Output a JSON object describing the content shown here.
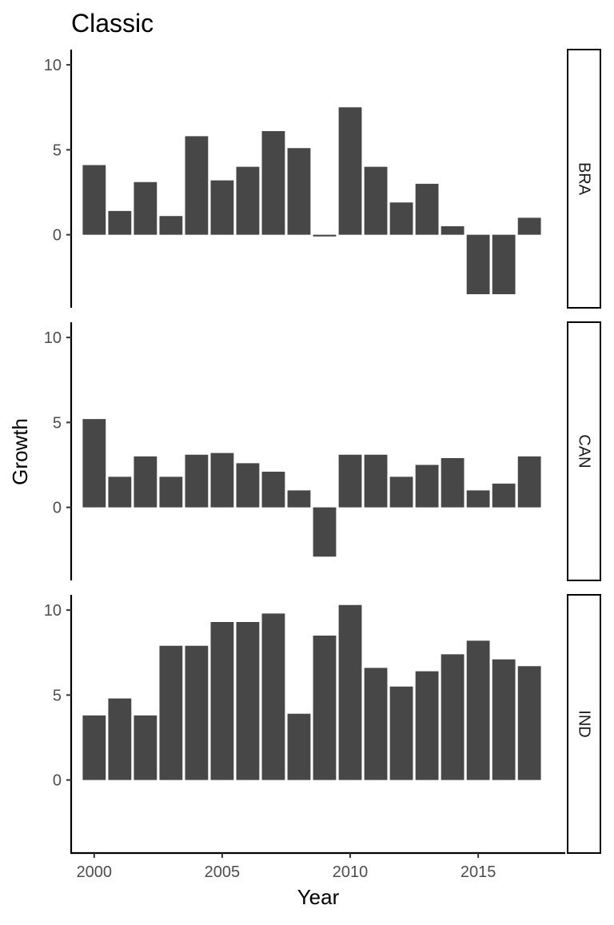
{
  "chart_data": {
    "type": "bar",
    "title": "Classic",
    "xlabel": "Year",
    "ylabel": "Growth",
    "facet_layout": "vertical, labels on right strip",
    "shared_y_range": [
      -4.3,
      10.9
    ],
    "y_ticks": [
      0,
      5,
      10
    ],
    "x_range": [
      1999.1,
      2018.4
    ],
    "x_ticks": [
      2000,
      2005,
      2010,
      2015
    ],
    "grid": false,
    "legend": "none",
    "bar_color": "#474747",
    "x": [
      2000,
      2001,
      2002,
      2003,
      2004,
      2005,
      2006,
      2007,
      2008,
      2009,
      2010,
      2011,
      2012,
      2013,
      2014,
      2015,
      2016,
      2017
    ],
    "panels": [
      {
        "label": "BRA",
        "values": [
          4.1,
          1.4,
          3.1,
          1.1,
          5.8,
          3.2,
          4.0,
          6.1,
          5.1,
          -0.1,
          7.5,
          4.0,
          1.9,
          3.0,
          0.5,
          -3.5,
          -3.5,
          1.0
        ]
      },
      {
        "label": "CAN",
        "values": [
          5.2,
          1.8,
          3.0,
          1.8,
          3.1,
          3.2,
          2.6,
          2.1,
          1.0,
          -2.9,
          3.1,
          3.1,
          1.8,
          2.5,
          2.9,
          1.0,
          1.4,
          3.0
        ]
      },
      {
        "label": "IND",
        "values": [
          3.8,
          4.8,
          3.8,
          7.9,
          7.9,
          9.3,
          9.3,
          9.8,
          3.9,
          8.5,
          10.3,
          6.6,
          5.5,
          6.4,
          7.4,
          8.2,
          7.1,
          6.7
        ]
      }
    ]
  }
}
